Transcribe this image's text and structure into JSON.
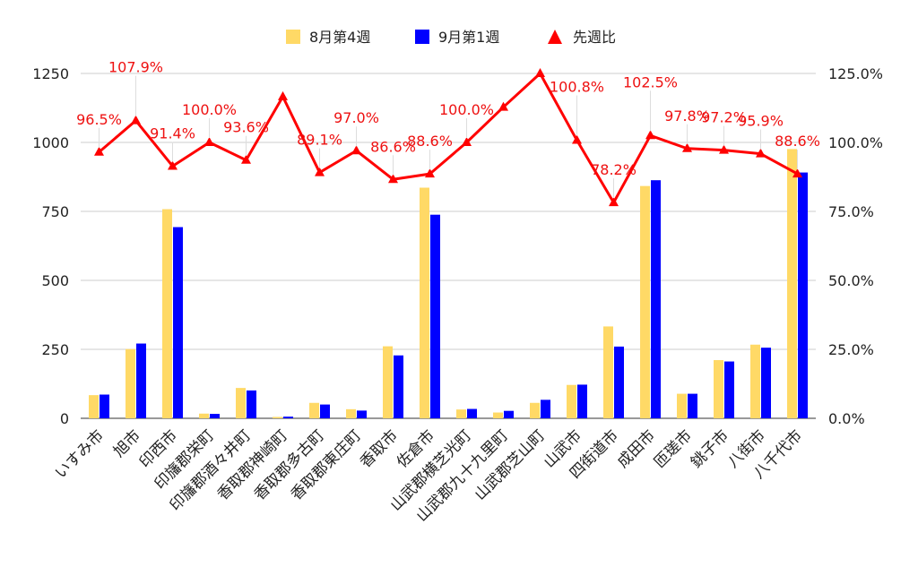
{
  "chart_data": {
    "type": "bar",
    "categories": [
      "いすみ市",
      "旭市",
      "印西市",
      "印旛郡栄町",
      "印旛郡酒々井町",
      "香取郡神崎町",
      "香取郡多古町",
      "香取郡東庄町",
      "香取市",
      "佐倉市",
      "山武郡横芝光町",
      "山武郡九十九里町",
      "山武郡芝山町",
      "山武市",
      "四街道市",
      "成田市",
      "匝瑳市",
      "銚子市",
      "八街市",
      "八千代市"
    ],
    "series": [
      {
        "name": "8月第4週",
        "color": "#ffd966",
        "values": [
          84,
          251,
          758,
          17,
          110,
          5,
          56,
          33,
          261,
          836,
          32,
          21,
          56,
          121,
          333,
          842,
          89,
          211,
          267,
          976
        ]
      },
      {
        "name": "9月第1週",
        "color": "#0000ff",
        "values": [
          86,
          271,
          693,
          16,
          101,
          6,
          50,
          28,
          228,
          738,
          34,
          27,
          67,
          122,
          260,
          863,
          89,
          206,
          256,
          891
        ]
      },
      {
        "name": "先週比",
        "color": "#ff0000",
        "type": "line",
        "values": [
          96.5,
          107.9,
          91.4,
          100.0,
          93.6,
          116.6,
          89.1,
          97.0,
          86.6,
          88.6,
          100.0,
          112.8,
          125.0,
          100.8,
          78.2,
          102.5,
          97.8,
          97.2,
          95.9,
          88.6
        ],
        "labels": [
          "96.5%",
          "107.9%",
          "91.4%",
          "100.0%",
          "93.6%",
          "",
          "89.1%",
          "97.0%",
          "86.6%",
          "88.6%",
          "100.0%",
          "",
          "",
          "100.8%",
          "78.2%",
          "102.5%",
          "97.8%",
          "97.2%",
          "95.9%",
          "88.6%"
        ]
      }
    ],
    "y_left": {
      "min": 0,
      "max": 1250,
      "ticks": [
        "0",
        "250",
        "500",
        "750",
        "1000",
        "1250"
      ]
    },
    "y_right": {
      "min": 0,
      "max": 125,
      "ticks": [
        "0.0%",
        "25.0%",
        "50.0%",
        "75.0%",
        "100.0%",
        "125.0%"
      ]
    },
    "grid": true,
    "legend_position": "top"
  }
}
